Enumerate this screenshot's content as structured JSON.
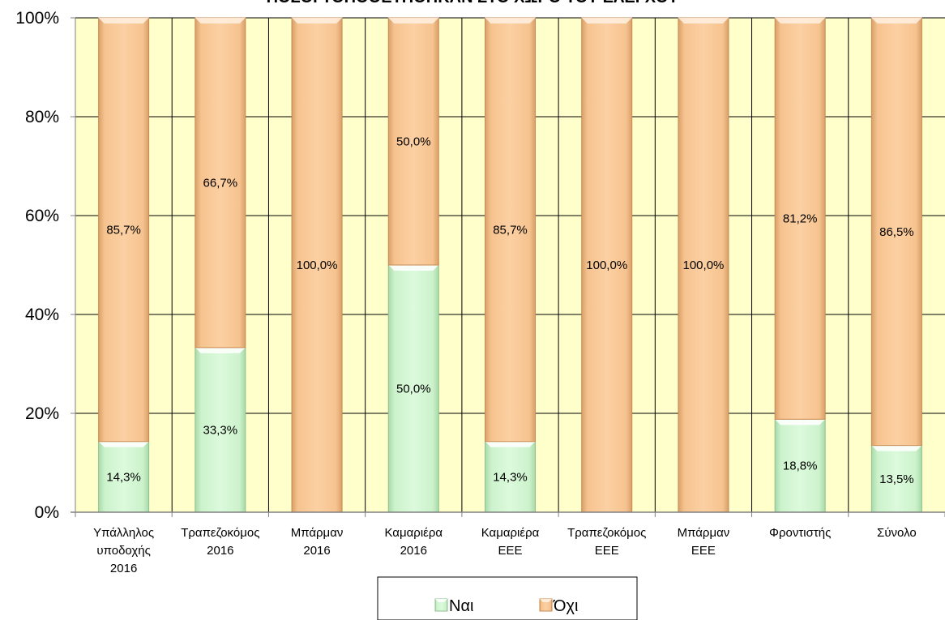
{
  "chart_data": {
    "type": "bar",
    "stacked": "percent",
    "title": "ΠΟΣΟΙ ΤΟΠΟΘΕΤΗΘΗΚΑΝ ΣΤΟ ΧΩΡΟ ΤΟΥ ΕΛΕΓΧΟΥ",
    "categories": [
      [
        "Υπάλληλος",
        "υποδοχής",
        "2016"
      ],
      [
        "Τραπεζοκόμος",
        "2016"
      ],
      [
        "Μπάρμαν",
        "2016"
      ],
      [
        "Καμαριέρα",
        "2016"
      ],
      [
        "Καμαριέρα",
        "ΕΕΕ"
      ],
      [
        "Τραπεζοκόμος",
        "ΕΕΕ"
      ],
      [
        "Μπάρμαν",
        "ΕΕΕ"
      ],
      [
        "Φροντιστής"
      ],
      [
        "Σύνολο"
      ]
    ],
    "series": [
      {
        "name": "Ναι",
        "color": "#d6f5d6",
        "values": [
          14.3,
          33.3,
          0,
          50.0,
          14.3,
          0,
          0,
          18.8,
          13.5
        ],
        "labels": [
          "14,3%",
          "33,3%",
          "",
          "50,0%",
          "14,3%",
          "",
          "",
          "18,8%",
          "13,5%"
        ]
      },
      {
        "name": "Όχι",
        "color": "#fac998",
        "values": [
          85.7,
          66.7,
          100.0,
          50.0,
          85.7,
          100.0,
          100.0,
          81.2,
          86.5
        ],
        "labels": [
          "85,7%",
          "66,7%",
          "100,0%",
          "50,0%",
          "85,7%",
          "100,0%",
          "100,0%",
          "81,2%",
          "86,5%"
        ]
      }
    ],
    "yticks": [
      "0%",
      "20%",
      "40%",
      "60%",
      "80%",
      "100%"
    ],
    "ylim": [
      0,
      100
    ],
    "grid": true,
    "legend_position": "bottom",
    "plot_background": "#ffffcc"
  }
}
